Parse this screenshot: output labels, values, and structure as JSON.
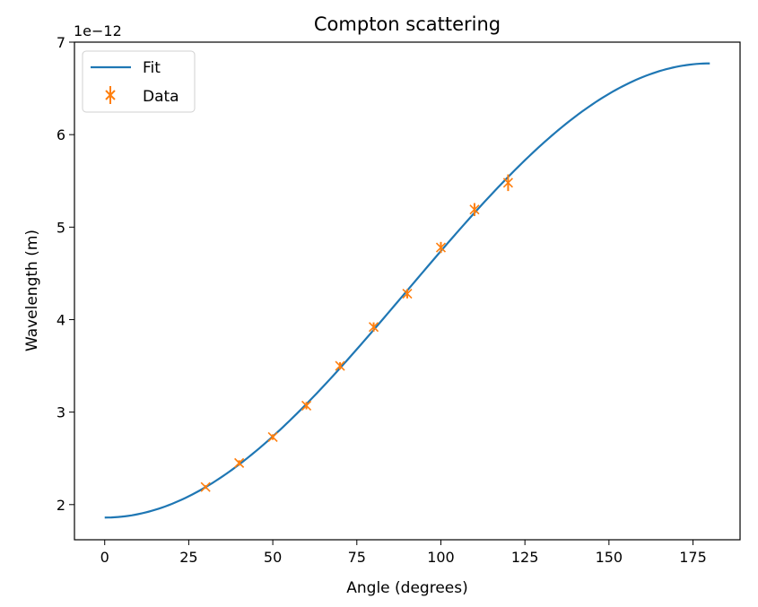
{
  "chart_data": {
    "type": "line",
    "title": "Compton scattering",
    "xlabel": "Angle (degrees)",
    "ylabel": "Wavelength (m)",
    "y_offset_text": "1e−12",
    "xlim": [
      -9,
      189
    ],
    "ylim": [
      1.62,
      7.0
    ],
    "xticks": [
      0,
      25,
      50,
      75,
      100,
      125,
      150,
      175
    ],
    "xtick_labels": [
      "0",
      "25",
      "50",
      "75",
      "100",
      "125",
      "150",
      "175"
    ],
    "yticks": [
      2,
      3,
      4,
      5,
      6,
      7
    ],
    "ytick_labels": [
      "2",
      "3",
      "4",
      "5",
      "6",
      "7"
    ],
    "grid": false,
    "legend_position": "top-left",
    "series": [
      {
        "name": "Fit",
        "kind": "line",
        "color": "#1f77b4",
        "model": {
          "lambda0": 1.86,
          "compton_shift_max": 4.91,
          "x_min": 0,
          "x_max": 180
        }
      },
      {
        "name": "Data",
        "kind": "errorbar",
        "marker": "x",
        "color": "#ff7f0e",
        "x": [
          30,
          40,
          50,
          60,
          70,
          80,
          90,
          100,
          110,
          120
        ],
        "y": [
          2.19,
          2.45,
          2.73,
          3.07,
          3.5,
          3.92,
          4.28,
          4.78,
          5.19,
          5.48
        ],
        "yerr": [
          0.02,
          0.03,
          0.03,
          0.04,
          0.04,
          0.05,
          0.05,
          0.06,
          0.07,
          0.09
        ]
      }
    ]
  }
}
